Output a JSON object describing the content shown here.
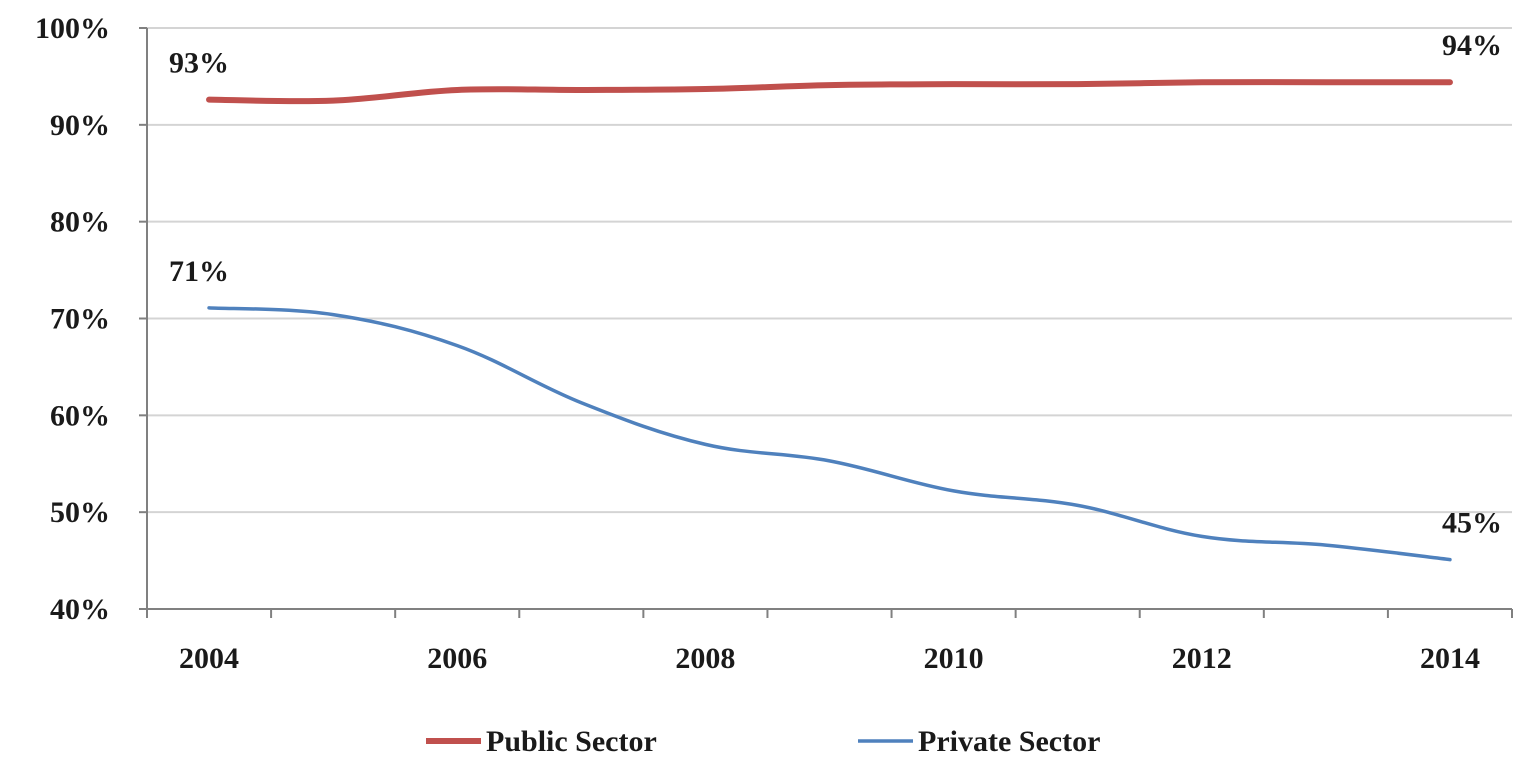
{
  "chart_data": {
    "type": "line",
    "x": [
      2004,
      2005,
      2006,
      2007,
      2008,
      2009,
      2010,
      2011,
      2012,
      2013,
      2014
    ],
    "x_tick_labels": [
      "2004",
      "2006",
      "2008",
      "2010",
      "2012",
      "2014"
    ],
    "y_tick_labels": [
      "40%",
      "50%",
      "60%",
      "70%",
      "80%",
      "90%",
      "100%"
    ],
    "ylim": [
      40,
      100
    ],
    "y_unit": "%",
    "grid": true,
    "legend_position": "bottom",
    "series": [
      {
        "name": "Public Sector",
        "color": "#c0504d",
        "values": [
          92.6,
          92.5,
          93.6,
          93.6,
          93.7,
          94.1,
          94.2,
          94.2,
          94.4,
          94.4,
          94.4
        ]
      },
      {
        "name": "Private Sector",
        "color": "#4f81bd",
        "values": [
          71.1,
          70.4,
          67.2,
          61.3,
          57.0,
          55.3,
          52.2,
          50.7,
          47.5,
          46.6,
          45.1
        ]
      }
    ],
    "annotations": [
      {
        "text": "93%",
        "series": 0,
        "x": 2004
      },
      {
        "text": "94%",
        "series": 0,
        "x": 2014
      },
      {
        "text": "71%",
        "series": 1,
        "x": 2004
      },
      {
        "text": "45%",
        "series": 1,
        "x": 2014
      }
    ]
  }
}
